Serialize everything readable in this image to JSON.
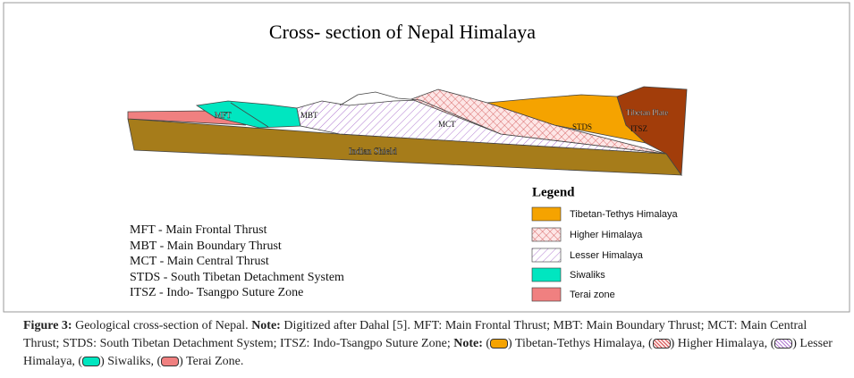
{
  "title": "Cross- section of Nepal Himalaya",
  "section_labels": {
    "mft": "MFT",
    "mbt": "MBT",
    "mct": "MCT",
    "stds": "STDS",
    "itsz": "ITSZ",
    "tibetan_plate": "Tibetan Plate",
    "indian_shield": "Indian Shield"
  },
  "abbreviations": [
    "MFT - Main Frontal Thrust",
    "MBT - Main Boundary Thrust",
    "MCT - Main Central Thrust",
    "STDS - South Tibetan Detachment System",
    "ITSZ - Indo- Tsangpo Suture Zone"
  ],
  "legend": {
    "title": "Legend",
    "items": [
      "Tibetan-Tethys Himalaya",
      "Higher Himalaya",
      "Lesser Himalaya",
      "Siwaliks",
      "Terai zone"
    ]
  },
  "caption": {
    "label": "Figure 3:",
    "sentence": "Geological cross-section of Nepal.",
    "note_label": "Note:",
    "note_text": "Digitized after Dahal [5]. MFT: Main Frontal Thrust; MBT: Main Boundary Thrust; MCT: Main Central Thrust; STDS: South Tibetan Detachment System; ITSZ: Indo-Tsangpo Suture Zone;",
    "key_label": "Note:",
    "key_items": [
      [
        "(",
        ") Tibetan-Tethys Himalaya,"
      ],
      [
        "(",
        ") Higher Himalaya,"
      ],
      [
        "(",
        ") Lesser Himalaya,"
      ],
      [
        "(",
        ") Siwaliks,"
      ],
      [
        "(",
        ") Terai Zone."
      ]
    ]
  }
}
